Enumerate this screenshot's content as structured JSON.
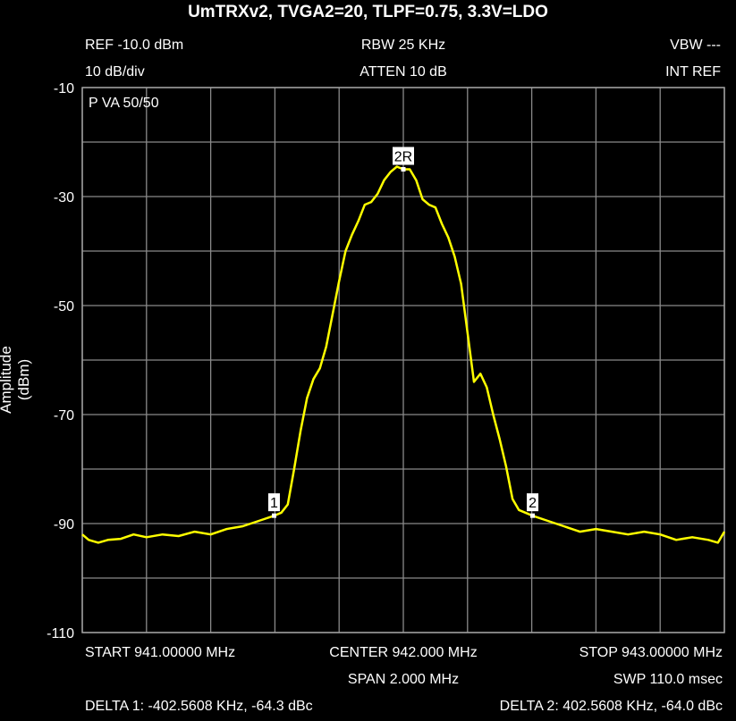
{
  "header": {
    "title": "UmTRXv2, TVGA2=20, TLPF=0.75, 3.3V=LDO",
    "ref": "REF -10.0 dBm",
    "rbw": "RBW 25 KHz",
    "vbw": "VBW ---",
    "scale": "10 dB/div",
    "atten": "ATTEN 10 dB",
    "int_ref": "INT REF",
    "mode": "P  VA 50/50"
  },
  "footer": {
    "start": "START 941.00000 MHz",
    "center": "CENTER 942.000 MHz",
    "stop": "STOP 943.00000 MHz",
    "span": "SPAN 2.000 MHz",
    "swp": "SWP 110.0 msec",
    "delta1": "DELTA 1: -402.5608 KHz, -64.3 dBc",
    "delta2": "DELTA 2: 402.5608 KHz, -64.0 dBc"
  },
  "chart_data": {
    "type": "line",
    "ylabel": "Amplitude (dBm)",
    "xlabel": "",
    "xlim": [
      941.0,
      943.0
    ],
    "ylim": [
      -110,
      -10
    ],
    "yticks": [
      "-10",
      "-30",
      "-50",
      "-70",
      "-90",
      "-110"
    ],
    "grid": true,
    "series": [
      {
        "color": "#ffff00",
        "x": [
          941.0,
          941.02,
          941.05,
          941.08,
          941.12,
          941.16,
          941.2,
          941.25,
          941.3,
          941.35,
          941.4,
          941.45,
          941.5,
          941.55,
          941.6,
          941.62,
          941.64,
          941.66,
          941.68,
          941.7,
          941.72,
          941.74,
          941.76,
          941.78,
          941.8,
          941.82,
          941.84,
          941.86,
          941.88,
          941.9,
          941.92,
          941.94,
          941.96,
          941.98,
          942.0,
          942.02,
          942.04,
          942.06,
          942.08,
          942.1,
          942.12,
          942.14,
          942.16,
          942.18,
          942.2,
          942.22,
          942.24,
          942.26,
          942.28,
          942.3,
          942.32,
          942.34,
          942.36,
          942.38,
          942.4,
          942.45,
          942.5,
          942.55,
          942.6,
          942.65,
          942.7,
          942.75,
          942.8,
          942.85,
          942.9,
          942.95,
          942.98,
          943.0
        ],
        "y": [
          -92.0,
          -93.0,
          -93.5,
          -93.0,
          -92.8,
          -92.0,
          -92.5,
          -92.0,
          -92.3,
          -91.5,
          -92.0,
          -91.0,
          -90.5,
          -89.5,
          -88.5,
          -88.0,
          -86.5,
          -80.0,
          -73.0,
          -67.0,
          -63.5,
          -61.5,
          -57.5,
          -51.5,
          -45.5,
          -40.0,
          -37.0,
          -34.5,
          -31.5,
          -31.0,
          -29.5,
          -27.0,
          -25.5,
          -24.5,
          -25.0,
          -25.0,
          -27.0,
          -30.5,
          -31.5,
          -32.0,
          -35.0,
          -37.5,
          -41.0,
          -46.0,
          -55.0,
          -64.0,
          -62.5,
          -65.0,
          -70.0,
          -74.5,
          -79.5,
          -85.5,
          -87.5,
          -88.0,
          -88.5,
          -89.5,
          -90.5,
          -91.5,
          -91.0,
          -91.5,
          -92.0,
          -91.5,
          -92.0,
          -93.0,
          -92.5,
          -93.0,
          -93.5,
          -91.5
        ]
      }
    ],
    "markers": [
      {
        "label": "1",
        "x": 941.5974
      },
      {
        "label": "2R",
        "x": 942.0
      },
      {
        "label": "2",
        "x": 942.4026
      }
    ]
  }
}
